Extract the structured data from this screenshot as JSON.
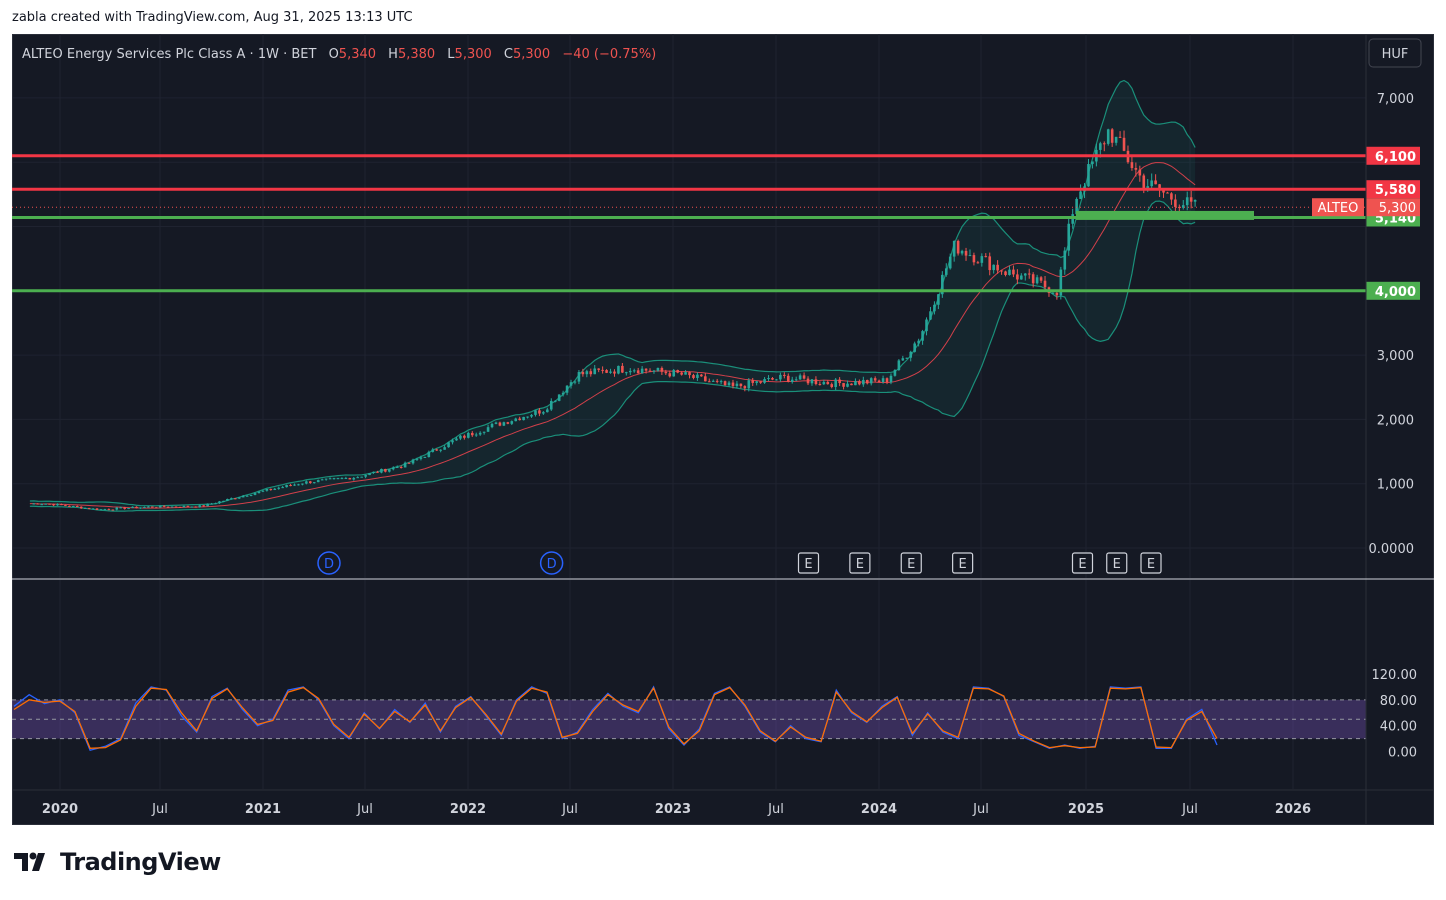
{
  "header": {
    "text": "zabla created with TradingView.com, Aug 31, 2025 13:13 UTC"
  },
  "legend": {
    "symbol": "ALTEO Energy Services Plc Class A · 1W · BET",
    "o_label": "O",
    "o_value": "5,340",
    "h_label": "H",
    "h_value": "5,380",
    "l_label": "L",
    "l_value": "5,300",
    "c_label": "C",
    "c_value": "5,300",
    "change": "−40 (−0.75%)"
  },
  "currency_button": "HUF",
  "brand": "TradingView",
  "colors": {
    "background": "#151924",
    "up": "#26a69a",
    "down": "#ef5350",
    "resistance": "#f23645",
    "support": "#4caf50",
    "bb": "#1a8f7a",
    "basis": "#d1404a",
    "stoch_k": "#2962ff",
    "stoch_d": "#ff6d00",
    "stoch_band": "#7e57c2"
  },
  "chart_data": [
    {
      "type": "candlestick",
      "symbol": "ALTEO",
      "interval": "1W",
      "currency": "HUF",
      "y_ticks": [
        "7,000",
        "3,000",
        "2,000",
        "1,000",
        "0.0000"
      ],
      "ylim": [
        0,
        7000
      ],
      "x_ticks": [
        "2020",
        "Jul",
        "2021",
        "Jul",
        "2022",
        "Jul",
        "2023",
        "Jul",
        "2024",
        "Jul",
        "2025",
        "Jul",
        "2026"
      ],
      "close_series_weekly_approx": [
        {
          "date": "2020-01",
          "close": 690
        },
        {
          "date": "2020-04",
          "close": 600
        },
        {
          "date": "2020-07",
          "close": 640
        },
        {
          "date": "2020-10",
          "close": 650
        },
        {
          "date": "2021-01",
          "close": 850
        },
        {
          "date": "2021-04",
          "close": 1020
        },
        {
          "date": "2021-07",
          "close": 1100
        },
        {
          "date": "2021-10",
          "close": 1300
        },
        {
          "date": "2022-01",
          "close": 1700
        },
        {
          "date": "2022-03",
          "close": 1900
        },
        {
          "date": "2022-06",
          "close": 2150
        },
        {
          "date": "2022-08",
          "close": 2700
        },
        {
          "date": "2022-11",
          "close": 2800
        },
        {
          "date": "2023-02",
          "close": 2700
        },
        {
          "date": "2023-05",
          "close": 2500
        },
        {
          "date": "2023-08",
          "close": 2650
        },
        {
          "date": "2023-11",
          "close": 2560
        },
        {
          "date": "2024-02",
          "close": 2600
        },
        {
          "date": "2024-04",
          "close": 3300
        },
        {
          "date": "2024-06",
          "close": 4700
        },
        {
          "date": "2024-09",
          "close": 4300
        },
        {
          "date": "2024-12",
          "close": 4000
        },
        {
          "date": "2025-01",
          "close": 5400
        },
        {
          "date": "2025-03",
          "close": 6500
        },
        {
          "date": "2025-05",
          "close": 5700
        },
        {
          "date": "2025-07",
          "close": 5400
        },
        {
          "date": "2025-08",
          "close": 5300
        }
      ],
      "price_lines": [
        {
          "value": 6100,
          "label": "6,100",
          "kind": "resistance"
        },
        {
          "value": 5580,
          "label": "5,580",
          "kind": "resistance"
        },
        {
          "value": 5140,
          "label": "5,140",
          "kind": "support"
        },
        {
          "value": 4000,
          "label": "4,000",
          "kind": "support"
        }
      ],
      "last_price": {
        "label": "ALTEO",
        "value": "5,300"
      },
      "indicator": "Bollinger Bands",
      "event_markers": [
        {
          "type": "D",
          "date": "2021-05"
        },
        {
          "type": "D",
          "date": "2022-06"
        },
        {
          "type": "E",
          "date": "2023-09"
        },
        {
          "type": "E",
          "date": "2023-12"
        },
        {
          "type": "E",
          "date": "2024-03"
        },
        {
          "type": "E",
          "date": "2024-06"
        },
        {
          "type": "E",
          "date": "2025-01"
        },
        {
          "type": "E",
          "date": "2025-03"
        },
        {
          "type": "E",
          "date": "2025-05"
        }
      ]
    },
    {
      "type": "line",
      "indicator": "Stochastic",
      "y_ticks": [
        "120.00",
        "80.00",
        "40.00",
        "0.00"
      ],
      "ylim": [
        0,
        120
      ],
      "band": [
        20,
        80
      ],
      "series": [
        {
          "values_approx": [
            70,
            88,
            74,
            80,
            60,
            2,
            8,
            20,
            75,
            100,
            95,
            55,
            30,
            85,
            98,
            65,
            40,
            50,
            95,
            100,
            80,
            40,
            20,
            60,
            35,
            65,
            45,
            75,
            30,
            70,
            85,
            55,
            25,
            80,
            100,
            90,
            20,
            30,
            65,
            90,
            70,
            60,
            100,
            35,
            10,
            35,
            90,
            100,
            70,
            30,
            15,
            40,
            20,
            15,
            95,
            60,
            45,
            70,
            85,
            25,
            60,
            30,
            20,
            100,
            98,
            85,
            25,
            15,
            5,
            10,
            5,
            8,
            100,
            98,
            100,
            5,
            5,
            50,
            65,
            10
          ]
        },
        {
          "values_approx": [
            65,
            80,
            76,
            78,
            62,
            5,
            6,
            18,
            70,
            98,
            96,
            60,
            32,
            82,
            97,
            68,
            42,
            48,
            92,
            99,
            82,
            42,
            22,
            58,
            36,
            62,
            46,
            72,
            32,
            68,
            84,
            57,
            27,
            78,
            98,
            92,
            22,
            28,
            62,
            88,
            72,
            62,
            98,
            38,
            12,
            32,
            88,
            99,
            72,
            32,
            16,
            38,
            22,
            16,
            92,
            62,
            46,
            68,
            84,
            28,
            58,
            32,
            22,
            98,
            97,
            86,
            28,
            16,
            6,
            9,
            6,
            7,
            98,
            97,
            99,
            7,
            6,
            48,
            62,
            20
          ]
        }
      ]
    }
  ]
}
